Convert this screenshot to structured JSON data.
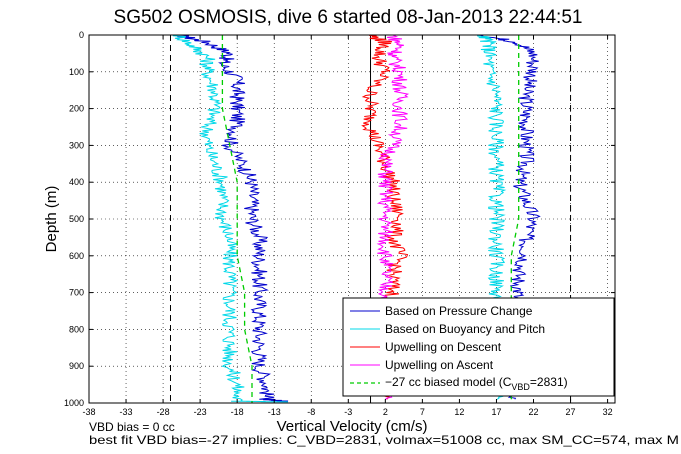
{
  "chart_data": {
    "type": "line",
    "title": "SG502 OSMOSIS, dive 6 started 08-Jan-2013 22:44:51",
    "xlabel": "Vertical Velocity (cm/s)",
    "ylabel": "Depth (m)",
    "xlim": [
      -38,
      33
    ],
    "ylim": [
      0,
      1000
    ],
    "y_reversed": true,
    "xticks": [
      -38,
      -33,
      -28,
      -23,
      -18,
      -13,
      -8,
      -3,
      2,
      7,
      12,
      17,
      22,
      27,
      32
    ],
    "yticks": [
      0,
      100,
      200,
      300,
      400,
      500,
      600,
      700,
      800,
      900,
      1000
    ],
    "grid": true,
    "legend_position": "bottom-right",
    "reference_lines": [
      {
        "x": -27,
        "style": "dashed",
        "color": "#000000"
      },
      {
        "x": 0,
        "style": "solid",
        "color": "#000000"
      },
      {
        "x": 27,
        "style": "dashed",
        "color": "#000000"
      }
    ],
    "series": [
      {
        "name": "Based on Pressure Change",
        "color": "#0000cc",
        "points": [
          [
            -26,
            0
          ],
          [
            -22,
            20
          ],
          [
            -19,
            50
          ],
          [
            -20,
            80
          ],
          [
            -18,
            120
          ],
          [
            -18,
            160
          ],
          [
            -18,
            200
          ],
          [
            -18,
            250
          ],
          [
            -19,
            300
          ],
          [
            -17,
            360
          ],
          [
            -16,
            400
          ],
          [
            -16,
            450
          ],
          [
            -16,
            500
          ],
          [
            -15,
            550
          ],
          [
            -15,
            600
          ],
          [
            -15,
            650
          ],
          [
            -15,
            700
          ],
          [
            -15,
            750
          ],
          [
            -15,
            800
          ],
          [
            -15,
            850
          ],
          [
            -15,
            900
          ],
          [
            -14,
            950
          ],
          [
            -14,
            990
          ],
          [
            -14,
            990
          ],
          [
            -12,
            995
          ],
          [
            15,
            0
          ],
          [
            20,
            20
          ],
          [
            22,
            50
          ],
          [
            22,
            100
          ],
          [
            21,
            150
          ],
          [
            21,
            200
          ],
          [
            21,
            250
          ],
          [
            21,
            300
          ],
          [
            21,
            350
          ],
          [
            20,
            400
          ],
          [
            21,
            450
          ],
          [
            22,
            500
          ],
          [
            21,
            550
          ],
          [
            21,
            600
          ],
          [
            20,
            650
          ],
          [
            20,
            700
          ],
          [
            19,
            750
          ],
          [
            20,
            800
          ],
          [
            19,
            850
          ],
          [
            19,
            900
          ],
          [
            19,
            950
          ],
          [
            19,
            990
          ]
        ]
      },
      {
        "name": "Based on Buoyancy and Pitch",
        "color": "#00d8e8",
        "points": [
          [
            -26,
            0
          ],
          [
            -24,
            30
          ],
          [
            -22,
            60
          ],
          [
            -22,
            100
          ],
          [
            -21,
            150
          ],
          [
            -21,
            200
          ],
          [
            -22,
            250
          ],
          [
            -22,
            300
          ],
          [
            -21,
            350
          ],
          [
            -20,
            400
          ],
          [
            -20,
            450
          ],
          [
            -20,
            500
          ],
          [
            -19,
            550
          ],
          [
            -19,
            600
          ],
          [
            -19,
            650
          ],
          [
            -19,
            700
          ],
          [
            -19,
            750
          ],
          [
            -19,
            800
          ],
          [
            -19,
            850
          ],
          [
            -19,
            900
          ],
          [
            -18,
            950
          ],
          [
            -18,
            995
          ],
          [
            -18,
            995
          ],
          [
            -12,
            997
          ],
          [
            15,
            0
          ],
          [
            16,
            20
          ],
          [
            16,
            50
          ],
          [
            16,
            100
          ],
          [
            17,
            150
          ],
          [
            17,
            200
          ],
          [
            17,
            250
          ],
          [
            17,
            300
          ],
          [
            17,
            350
          ],
          [
            17,
            400
          ],
          [
            17,
            450
          ],
          [
            17,
            500
          ],
          [
            17,
            550
          ],
          [
            17,
            600
          ],
          [
            17,
            650
          ],
          [
            17,
            700
          ],
          [
            17,
            750
          ],
          [
            17,
            800
          ],
          [
            17,
            850
          ],
          [
            17,
            900
          ],
          [
            17,
            950
          ],
          [
            17,
            990
          ]
        ]
      },
      {
        "name": "Upwelling on Descent",
        "color": "#ff0000",
        "points": [
          [
            0,
            0
          ],
          [
            2,
            20
          ],
          [
            1,
            60
          ],
          [
            2,
            100
          ],
          [
            0,
            150
          ],
          [
            0,
            200
          ],
          [
            0,
            250
          ],
          [
            1,
            300
          ],
          [
            2,
            350
          ],
          [
            3,
            400
          ],
          [
            3,
            450
          ],
          [
            4,
            500
          ],
          [
            3,
            550
          ],
          [
            4,
            600
          ],
          [
            3,
            650
          ],
          [
            3,
            700
          ],
          [
            3,
            750
          ],
          [
            3,
            800
          ],
          [
            3,
            850
          ],
          [
            3,
            900
          ],
          [
            3,
            950
          ],
          [
            3,
            990
          ]
        ]
      },
      {
        "name": "Upwelling on Ascent",
        "color": "#ff00ff",
        "points": [
          [
            3,
            0
          ],
          [
            4,
            30
          ],
          [
            3,
            60
          ],
          [
            4,
            100
          ],
          [
            4,
            150
          ],
          [
            4,
            200
          ],
          [
            4,
            250
          ],
          [
            3,
            300
          ],
          [
            2,
            350
          ],
          [
            2,
            400
          ],
          [
            2,
            450
          ],
          [
            2,
            500
          ],
          [
            2,
            550
          ],
          [
            2,
            600
          ],
          [
            2,
            650
          ],
          [
            2,
            700
          ],
          [
            2,
            750
          ],
          [
            2,
            800
          ],
          [
            2,
            850
          ],
          [
            2,
            900
          ],
          [
            2,
            950
          ],
          [
            2,
            990
          ]
        ]
      },
      {
        "name": "-27 cc biased model (C_VBD=2831)",
        "color": "#00cc00",
        "style": "dashed",
        "points": [
          [
            -20,
            0
          ],
          [
            -20,
            100
          ],
          [
            -20,
            200
          ],
          [
            -19,
            300
          ],
          [
            -18,
            400
          ],
          [
            -18,
            500
          ],
          [
            -18,
            600
          ],
          [
            -17,
            700
          ],
          [
            -17,
            800
          ],
          [
            -16,
            900
          ],
          [
            -16,
            1000
          ],
          [
            20,
            0
          ],
          [
            20,
            100
          ],
          [
            20,
            200
          ],
          [
            20,
            300
          ],
          [
            20,
            400
          ],
          [
            20,
            500
          ],
          [
            19,
            600
          ],
          [
            19,
            700
          ],
          [
            19,
            800
          ],
          [
            19,
            900
          ],
          [
            19,
            1000
          ]
        ]
      }
    ]
  },
  "legend": {
    "items": [
      {
        "label": "Based on Pressure Change"
      },
      {
        "label": "Based on Buoyancy and Pitch"
      },
      {
        "label": "Upwelling on Descent"
      },
      {
        "label": "Upwelling on Ascent"
      },
      {
        "label_main": "−27 cc biased model (C",
        "label_sub": "VBD",
        "label_tail": "=2831)"
      }
    ]
  },
  "footer": {
    "line1": "VBD bias = 0 cc",
    "line2": "best fit VBD bias=-27 implies: C_VBD=2831, volmax=51008 cc, max SM_CC=574, max M"
  }
}
